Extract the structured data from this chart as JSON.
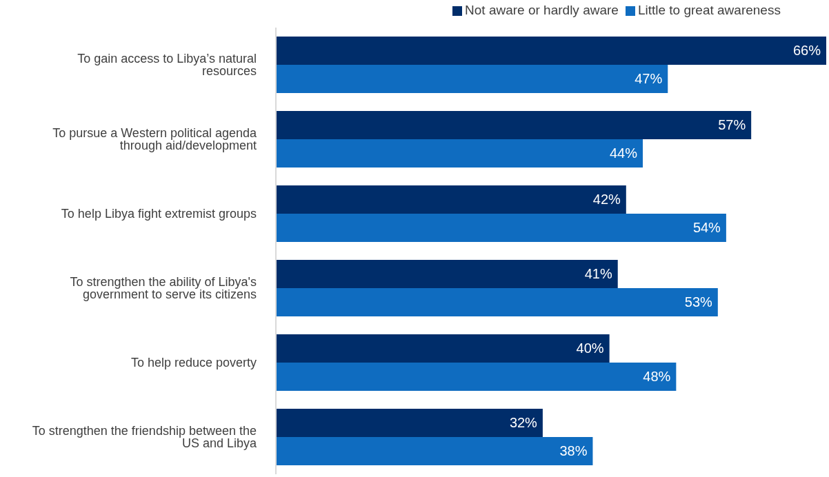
{
  "chart_data": {
    "type": "bar",
    "orientation": "horizontal",
    "categories": [
      "To gain access to Libya’s natural resources",
      "To pursue a Western political agenda through aid/development",
      "To help Libya fight extremist groups",
      "To strengthen the ability of Libya's government to serve its citizens",
      "To help reduce poverty",
      "To strengthen the friendship between the US and Libya"
    ],
    "series": [
      {
        "name": "Not aware or hardly aware",
        "color": "#002d6a",
        "values": [
          66,
          57,
          42,
          41,
          40,
          32
        ],
        "value_labels": [
          "66%",
          "57%",
          "42%",
          "41%",
          "40%",
          "32%"
        ]
      },
      {
        "name": "Little to great awareness",
        "color": "#0f6cc0",
        "values": [
          47,
          44,
          54,
          53,
          48,
          38
        ],
        "value_labels": [
          "47%",
          "44%",
          "54%",
          "53%",
          "48%",
          "38%"
        ]
      }
    ],
    "legend": "top",
    "grid": false
  }
}
